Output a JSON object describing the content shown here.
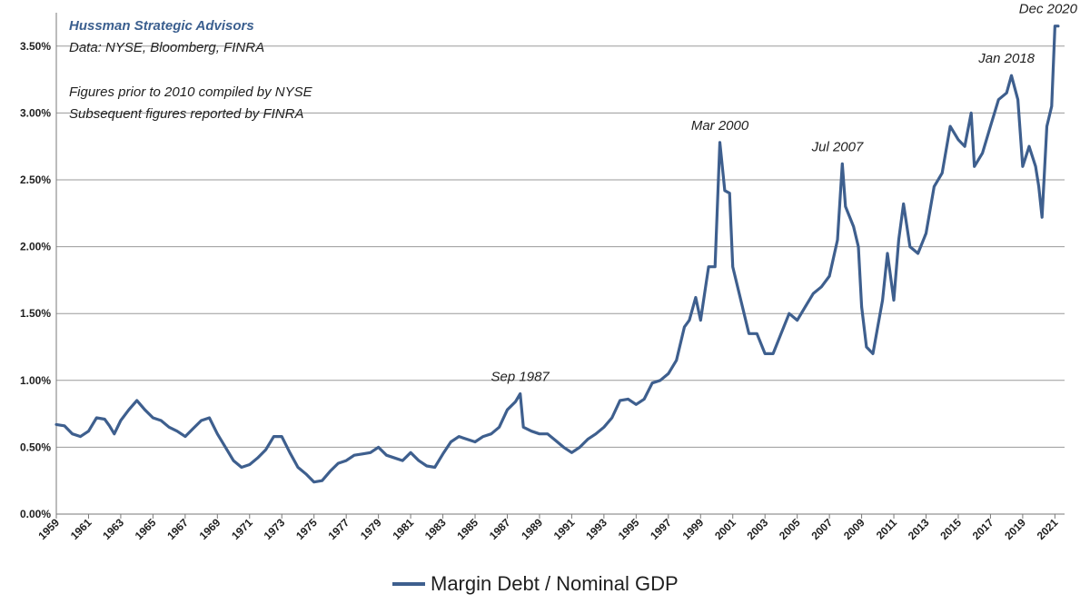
{
  "notes": {
    "source_org": "Hussman Strategic Advisors",
    "source_data": "Data: NYSE, Bloomberg, FINRA",
    "note_line1": "Figures prior to 2010 compiled by NYSE",
    "note_line2": "Subsequent figures reported by FINRA"
  },
  "chart_data": {
    "type": "line",
    "title": "",
    "xlabel": "",
    "ylabel": "",
    "xlim": [
      1959,
      2021.6
    ],
    "ylim": [
      0,
      3.75
    ],
    "y_ticks": [
      0,
      0.5,
      1.0,
      1.5,
      2.0,
      2.5,
      3.0,
      3.5
    ],
    "y_tick_labels": [
      "0.00%",
      "0.50%",
      "1.00%",
      "1.50%",
      "2.00%",
      "2.50%",
      "3.00%",
      "3.50%"
    ],
    "x_ticks": [
      1959,
      1961,
      1963,
      1965,
      1967,
      1969,
      1971,
      1973,
      1975,
      1977,
      1979,
      1981,
      1983,
      1985,
      1987,
      1989,
      1991,
      1993,
      1995,
      1997,
      1999,
      2001,
      2003,
      2005,
      2007,
      2009,
      2011,
      2013,
      2015,
      2017,
      2019,
      2021
    ],
    "x_tick_labels": [
      "1959",
      "1961",
      "1963",
      "1965",
      "1967",
      "1969",
      "1971",
      "1973",
      "1975",
      "1977",
      "1979",
      "1981",
      "1983",
      "1985",
      "1987",
      "1989",
      "1991",
      "1993",
      "1995",
      "1997",
      "1999",
      "2001",
      "2003",
      "2005",
      "2007",
      "2009",
      "2011",
      "2013",
      "2015",
      "2017",
      "2019",
      "2021"
    ],
    "grid": true,
    "legend_position": "bottom",
    "line_color": "#3e5f8e",
    "series": [
      {
        "name": "Margin Debt / Nominal GDP",
        "x": [
          1959.0,
          1959.5,
          1960.0,
          1960.5,
          1961.0,
          1961.5,
          1962.0,
          1962.3,
          1962.6,
          1963.0,
          1963.5,
          1964.0,
          1964.5,
          1965.0,
          1965.5,
          1966.0,
          1966.5,
          1967.0,
          1967.5,
          1968.0,
          1968.5,
          1969.0,
          1969.5,
          1970.0,
          1970.5,
          1971.0,
          1971.5,
          1972.0,
          1972.5,
          1973.0,
          1973.5,
          1974.0,
          1974.5,
          1975.0,
          1975.5,
          1976.0,
          1976.5,
          1977.0,
          1977.5,
          1978.0,
          1978.5,
          1979.0,
          1979.5,
          1980.0,
          1980.5,
          1981.0,
          1981.5,
          1982.0,
          1982.5,
          1983.0,
          1983.5,
          1984.0,
          1984.5,
          1985.0,
          1985.5,
          1986.0,
          1986.5,
          1987.0,
          1987.5,
          1987.8,
          1988.0,
          1988.5,
          1989.0,
          1989.5,
          1990.0,
          1990.5,
          1991.0,
          1991.5,
          1992.0,
          1992.5,
          1993.0,
          1993.5,
          1994.0,
          1994.5,
          1995.0,
          1995.5,
          1996.0,
          1996.5,
          1997.0,
          1997.5,
          1998.0,
          1998.3,
          1998.7,
          1999.0,
          1999.5,
          1999.9,
          2000.2,
          2000.5,
          2000.8,
          2001.0,
          2001.5,
          2002.0,
          2002.5,
          2003.0,
          2003.5,
          2004.0,
          2004.5,
          2005.0,
          2005.5,
          2006.0,
          2006.5,
          2007.0,
          2007.5,
          2007.8,
          2008.0,
          2008.5,
          2008.8,
          2009.0,
          2009.3,
          2009.7,
          2010.0,
          2010.3,
          2010.6,
          2011.0,
          2011.3,
          2011.6,
          2012.0,
          2012.5,
          2013.0,
          2013.5,
          2014.0,
          2014.5,
          2015.0,
          2015.4,
          2015.8,
          2016.0,
          2016.5,
          2017.0,
          2017.5,
          2018.0,
          2018.3,
          2018.7,
          2019.0,
          2019.4,
          2019.8,
          2020.0,
          2020.2,
          2020.5,
          2020.8,
          2021.0,
          2021.2
        ],
        "values": [
          0.67,
          0.66,
          0.6,
          0.58,
          0.62,
          0.72,
          0.71,
          0.66,
          0.6,
          0.7,
          0.78,
          0.85,
          0.78,
          0.72,
          0.7,
          0.65,
          0.62,
          0.58,
          0.64,
          0.7,
          0.72,
          0.6,
          0.5,
          0.4,
          0.35,
          0.37,
          0.42,
          0.48,
          0.58,
          0.58,
          0.46,
          0.35,
          0.3,
          0.24,
          0.25,
          0.32,
          0.38,
          0.4,
          0.44,
          0.45,
          0.46,
          0.5,
          0.44,
          0.42,
          0.4,
          0.46,
          0.4,
          0.36,
          0.35,
          0.45,
          0.54,
          0.58,
          0.56,
          0.54,
          0.58,
          0.6,
          0.65,
          0.78,
          0.84,
          0.9,
          0.65,
          0.62,
          0.6,
          0.6,
          0.55,
          0.5,
          0.46,
          0.5,
          0.56,
          0.6,
          0.65,
          0.72,
          0.85,
          0.86,
          0.82,
          0.86,
          0.98,
          1.0,
          1.05,
          1.15,
          1.4,
          1.45,
          1.62,
          1.45,
          1.85,
          1.85,
          2.78,
          2.42,
          2.4,
          1.85,
          1.6,
          1.35,
          1.35,
          1.2,
          1.2,
          1.35,
          1.5,
          1.45,
          1.55,
          1.65,
          1.7,
          1.78,
          2.05,
          2.62,
          2.3,
          2.15,
          2.0,
          1.55,
          1.25,
          1.2,
          1.4,
          1.6,
          1.95,
          1.6,
          2.05,
          2.32,
          2.0,
          1.95,
          2.1,
          2.45,
          2.55,
          2.9,
          2.8,
          2.75,
          3.0,
          2.6,
          2.7,
          2.9,
          3.1,
          3.15,
          3.28,
          3.1,
          2.6,
          2.75,
          2.6,
          2.45,
          2.22,
          2.9,
          3.05,
          3.65,
          3.65
        ]
      }
    ],
    "annotations": [
      {
        "text": "Sep 1987",
        "x": 1987.8,
        "y": 0.9
      },
      {
        "text": "Mar 2000",
        "x": 2000.2,
        "y": 2.78
      },
      {
        "text": "Jul 2007",
        "x": 2007.5,
        "y": 2.62
      },
      {
        "text": "Jan 2018",
        "x": 2018.0,
        "y": 3.28
      },
      {
        "text": "Dec 2020",
        "x": 2020.9,
        "y": 3.65
      }
    ]
  }
}
